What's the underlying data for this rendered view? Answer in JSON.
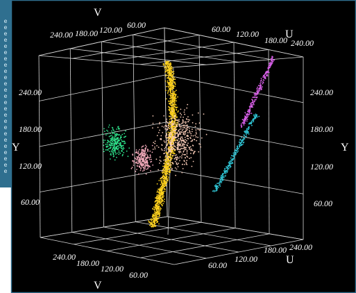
{
  "window": {
    "background": "#000000",
    "frame_color": "#2f6f8f",
    "grid_color": "#d8d8d8"
  },
  "side_panel": {
    "glyph": "e"
  },
  "chart_data": {
    "type": "scatter",
    "title": "",
    "axes": {
      "U": {
        "label": "U",
        "range": [
          0,
          255
        ],
        "ticks": [
          "60.00",
          "120.00",
          "180.00",
          "240.00"
        ]
      },
      "V": {
        "label": "V",
        "range": [
          0,
          255
        ],
        "ticks": [
          "60.00",
          "120.00",
          "180.00",
          "240.00"
        ]
      },
      "Y": {
        "label": "Y",
        "range": [
          0,
          255
        ],
        "ticks": [
          "60.00",
          "120.00",
          "180.00",
          "240.00"
        ]
      }
    },
    "grid": true,
    "legend": "none",
    "clusters": [
      {
        "color": "#ffd21e",
        "u": [
          120,
          160
        ],
        "v": [
          110,
          170
        ],
        "y": [
          20,
          250
        ],
        "shape": "crescent"
      },
      {
        "color": "#f4c8b4",
        "u": [
          120,
          200
        ],
        "v": [
          100,
          190
        ],
        "y": [
          90,
          200
        ],
        "shape": "cloud"
      },
      {
        "color": "#2ee08a",
        "u": [
          60,
          100
        ],
        "v": [
          170,
          215
        ],
        "y": [
          110,
          170
        ],
        "shape": "blob"
      },
      {
        "color": "#f0a8b8",
        "u": [
          90,
          120
        ],
        "v": [
          140,
          180
        ],
        "y": [
          90,
          140
        ],
        "shape": "blob"
      },
      {
        "color": "#30c8d8",
        "u": [
          190,
          235
        ],
        "v": [
          60,
          100
        ],
        "y": [
          70,
          180
        ],
        "shape": "streak"
      },
      {
        "color": "#d860e8",
        "u": [
          215,
          250
        ],
        "v": [
          40,
          70
        ],
        "y": [
          160,
          260
        ],
        "shape": "streak"
      }
    ]
  }
}
